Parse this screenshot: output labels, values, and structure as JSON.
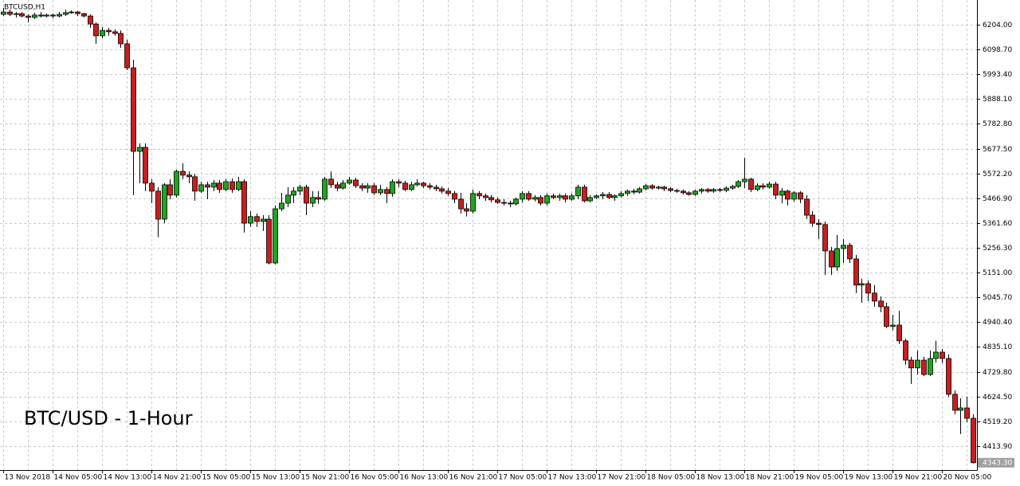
{
  "chart_data": {
    "type": "candlestick",
    "title": "BTCUSD,H1",
    "annotation": "BTC/USD - 1-Hour",
    "up_color": "#1fa51f",
    "down_color": "#c81e1e",
    "grid": true,
    "ylim": [
      4312,
      6309
    ],
    "yticks": [
      {
        "value": 6204,
        "label": "6204.00"
      },
      {
        "value": 6098.7,
        "label": "6098.70"
      },
      {
        "value": 5993.4,
        "label": "5993.40"
      },
      {
        "value": 5888.1,
        "label": "5888.10"
      },
      {
        "value": 5782.8,
        "label": "5782.80"
      },
      {
        "value": 5677.5,
        "label": "5677.50"
      },
      {
        "value": 5572.2,
        "label": "5572.20"
      },
      {
        "value": 5466.9,
        "label": "5466.90"
      },
      {
        "value": 5361.6,
        "label": "5361.60"
      },
      {
        "value": 5256.3,
        "label": "5256.30"
      },
      {
        "value": 5151,
        "label": "5151.00"
      },
      {
        "value": 5045.7,
        "label": "5045.70"
      },
      {
        "value": 4940.4,
        "label": "4940.40"
      },
      {
        "value": 4835.1,
        "label": "4835.10"
      },
      {
        "value": 4729.8,
        "label": "4729.80"
      },
      {
        "value": 4624.5,
        "label": "4624.50"
      },
      {
        "value": 4519.2,
        "label": "4519.20"
      },
      {
        "value": 4413.9,
        "label": "4413.90"
      }
    ],
    "last_price": {
      "value": 4343.3,
      "label": "4343.30"
    },
    "categories": [
      "13 Nov 2018",
      null,
      null,
      null,
      null,
      null,
      null,
      null,
      "14 Nov 05:00",
      null,
      null,
      null,
      null,
      null,
      null,
      null,
      "14 Nov 13:00",
      null,
      null,
      null,
      null,
      null,
      null,
      null,
      "14 Nov 21:00",
      null,
      null,
      null,
      null,
      null,
      null,
      null,
      "15 Nov 05:00",
      null,
      null,
      null,
      null,
      null,
      null,
      null,
      "15 Nov 13:00",
      null,
      null,
      null,
      null,
      null,
      null,
      null,
      "15 Nov 21:00",
      null,
      null,
      null,
      null,
      null,
      null,
      null,
      "16 Nov 05:00",
      null,
      null,
      null,
      null,
      null,
      null,
      null,
      "16 Nov 13:00",
      null,
      null,
      null,
      null,
      null,
      null,
      null,
      "16 Nov 21:00",
      null,
      null,
      null,
      null,
      null,
      null,
      null,
      "17 Nov 05:00",
      null,
      null,
      null,
      null,
      null,
      null,
      null,
      "17 Nov 13:00",
      null,
      null,
      null,
      null,
      null,
      null,
      null,
      "17 Nov 21:00",
      null,
      null,
      null,
      null,
      null,
      null,
      null,
      "18 Nov 05:00",
      null,
      null,
      null,
      null,
      null,
      null,
      null,
      "18 Nov 13:00",
      null,
      null,
      null,
      null,
      null,
      null,
      null,
      "18 Nov 21:00",
      null,
      null,
      null,
      null,
      null,
      null,
      null,
      "19 Nov 05:00",
      null,
      null,
      null,
      null,
      null,
      null,
      null,
      "19 Nov 13:00",
      null,
      null,
      null,
      null,
      null,
      null,
      null,
      "19 Nov 21:00",
      null,
      null,
      null,
      null,
      null,
      null,
      null,
      "20 Nov 05:00",
      null,
      null,
      null,
      null,
      null
    ],
    "open": [
      6248,
      6258,
      6248,
      6251,
      6241,
      6235,
      6245,
      6241,
      6245,
      6241,
      6248,
      6255,
      6258,
      6251,
      6241,
      6207,
      6157,
      6180,
      6174,
      6167,
      6123,
      6021,
      5666,
      5683,
      5531,
      5497,
      5378,
      5524,
      5480,
      5581,
      5565,
      5558,
      5497,
      5524,
      5514,
      5531,
      5504,
      5537,
      5504,
      5537,
      5361,
      5389,
      5368,
      5378,
      5192,
      5422,
      5446,
      5480,
      5497,
      5514,
      5446,
      5470,
      5463,
      5548,
      5524,
      5510,
      5531,
      5544,
      5520,
      5510,
      5520,
      5490,
      5504,
      5487,
      5537,
      5531,
      5504,
      5524,
      5531,
      5520,
      5514,
      5507,
      5497,
      5487,
      5463,
      5422,
      5412,
      5487,
      5477,
      5470,
      5460,
      5449,
      5446,
      5443,
      5463,
      5487,
      5463,
      5470,
      5446,
      5477,
      5470,
      5477,
      5463,
      5477,
      5514,
      5456,
      5470,
      5477,
      5483,
      5470,
      5477,
      5487,
      5497,
      5493,
      5507,
      5520,
      5510,
      5514,
      5507,
      5500,
      5497,
      5490,
      5483,
      5497,
      5504,
      5497,
      5504,
      5500,
      5510,
      5517,
      5537,
      5548,
      5504,
      5520,
      5514,
      5527,
      5480,
      5497,
      5463,
      5490,
      5463,
      5395,
      5361,
      5355,
      5243,
      5175,
      5253,
      5267,
      5209,
      5098,
      5104,
      5064,
      5030,
      5006,
      4922,
      4928,
      4861,
      4779,
      4746,
      4779,
      4718,
      4786,
      4813,
      4786,
      4634,
      4566,
      4576,
      4532
    ],
    "high": [
      6275,
      6268,
      6258,
      6258,
      6248,
      6255,
      6258,
      6251,
      6251,
      6258,
      6268,
      6265,
      6262,
      6255,
      6248,
      6214,
      6194,
      6191,
      6184,
      6180,
      6140,
      6055,
      5700,
      5700,
      5548,
      5514,
      5531,
      5548,
      5588,
      5615,
      5581,
      5571,
      5537,
      5537,
      5544,
      5544,
      5548,
      5551,
      5558,
      5548,
      5412,
      5402,
      5395,
      5395,
      5436,
      5490,
      5514,
      5514,
      5524,
      5524,
      5497,
      5497,
      5558,
      5581,
      5537,
      5544,
      5558,
      5554,
      5531,
      5531,
      5531,
      5524,
      5514,
      5548,
      5548,
      5541,
      5537,
      5548,
      5537,
      5531,
      5524,
      5517,
      5510,
      5497,
      5490,
      5446,
      5504,
      5497,
      5487,
      5480,
      5470,
      5463,
      5456,
      5470,
      5497,
      5497,
      5480,
      5480,
      5487,
      5487,
      5487,
      5487,
      5487,
      5524,
      5524,
      5480,
      5483,
      5493,
      5493,
      5483,
      5497,
      5504,
      5507,
      5514,
      5527,
      5527,
      5520,
      5520,
      5514,
      5507,
      5504,
      5497,
      5504,
      5510,
      5510,
      5510,
      5510,
      5517,
      5524,
      5544,
      5639,
      5554,
      5531,
      5531,
      5537,
      5537,
      5510,
      5504,
      5497,
      5497,
      5480,
      5412,
      5378,
      5368,
      5260,
      5311,
      5294,
      5277,
      5226,
      5125,
      5118,
      5098,
      5050,
      5023,
      4972,
      4989,
      4871,
      4793,
      4820,
      4793,
      4820,
      4861,
      4827,
      4803,
      4651,
      4617,
      4624,
      4549
    ],
    "low": [
      6241,
      6241,
      6235,
      6235,
      6214,
      6228,
      6235,
      6235,
      6231,
      6235,
      6241,
      6251,
      6241,
      6235,
      6191,
      6123,
      6147,
      6157,
      6157,
      6106,
      6011,
      5480,
      5531,
      5497,
      5446,
      5301,
      5361,
      5463,
      5470,
      5548,
      5531,
      5456,
      5490,
      5463,
      5497,
      5490,
      5497,
      5490,
      5497,
      5321,
      5345,
      5345,
      5328,
      5186,
      5186,
      5412,
      5429,
      5446,
      5480,
      5395,
      5429,
      5443,
      5456,
      5510,
      5497,
      5504,
      5524,
      5510,
      5497,
      5490,
      5480,
      5480,
      5446,
      5473,
      5514,
      5497,
      5497,
      5517,
      5510,
      5504,
      5497,
      5487,
      5477,
      5446,
      5402,
      5389,
      5402,
      5463,
      5456,
      5449,
      5443,
      5436,
      5429,
      5436,
      5449,
      5456,
      5453,
      5436,
      5436,
      5463,
      5456,
      5449,
      5456,
      5463,
      5449,
      5449,
      5463,
      5463,
      5463,
      5456,
      5470,
      5477,
      5483,
      5487,
      5500,
      5504,
      5504,
      5497,
      5493,
      5490,
      5483,
      5477,
      5477,
      5487,
      5490,
      5490,
      5493,
      5493,
      5504,
      5510,
      5510,
      5493,
      5497,
      5504,
      5507,
      5463,
      5446,
      5436,
      5453,
      5446,
      5378,
      5345,
      5294,
      5141,
      5141,
      5158,
      5192,
      5192,
      5064,
      5023,
      5030,
      5006,
      4982,
      4915,
      4905,
      4847,
      4759,
      4678,
      4718,
      4712,
      4712,
      4769,
      4766,
      4624,
      4549,
      4465,
      4516,
      4340
    ],
    "close": [
      6258,
      6248,
      6251,
      6241,
      6235,
      6245,
      6241,
      6245,
      6241,
      6248,
      6255,
      6258,
      6251,
      6241,
      6207,
      6157,
      6180,
      6174,
      6167,
      6123,
      6021,
      5666,
      5683,
      5531,
      5497,
      5378,
      5524,
      5480,
      5581,
      5565,
      5558,
      5497,
      5524,
      5514,
      5531,
      5504,
      5537,
      5504,
      5537,
      5361,
      5389,
      5368,
      5378,
      5192,
      5422,
      5446,
      5480,
      5497,
      5514,
      5446,
      5470,
      5463,
      5548,
      5524,
      5510,
      5531,
      5544,
      5520,
      5510,
      5520,
      5490,
      5504,
      5487,
      5537,
      5531,
      5504,
      5524,
      5531,
      5520,
      5514,
      5507,
      5497,
      5487,
      5463,
      5422,
      5412,
      5487,
      5477,
      5470,
      5460,
      5449,
      5446,
      5443,
      5463,
      5487,
      5463,
      5470,
      5446,
      5477,
      5470,
      5477,
      5463,
      5477,
      5514,
      5456,
      5470,
      5477,
      5483,
      5470,
      5477,
      5487,
      5497,
      5493,
      5507,
      5520,
      5510,
      5514,
      5507,
      5500,
      5497,
      5490,
      5483,
      5497,
      5504,
      5497,
      5504,
      5500,
      5510,
      5517,
      5537,
      5548,
      5504,
      5520,
      5514,
      5527,
      5480,
      5497,
      5463,
      5490,
      5463,
      5395,
      5361,
      5355,
      5243,
      5175,
      5253,
      5267,
      5209,
      5098,
      5104,
      5064,
      5030,
      5006,
      4922,
      4928,
      4861,
      4779,
      4746,
      4779,
      4718,
      4786,
      4813,
      4786,
      4634,
      4566,
      4576,
      4532,
      4343.3
    ]
  }
}
